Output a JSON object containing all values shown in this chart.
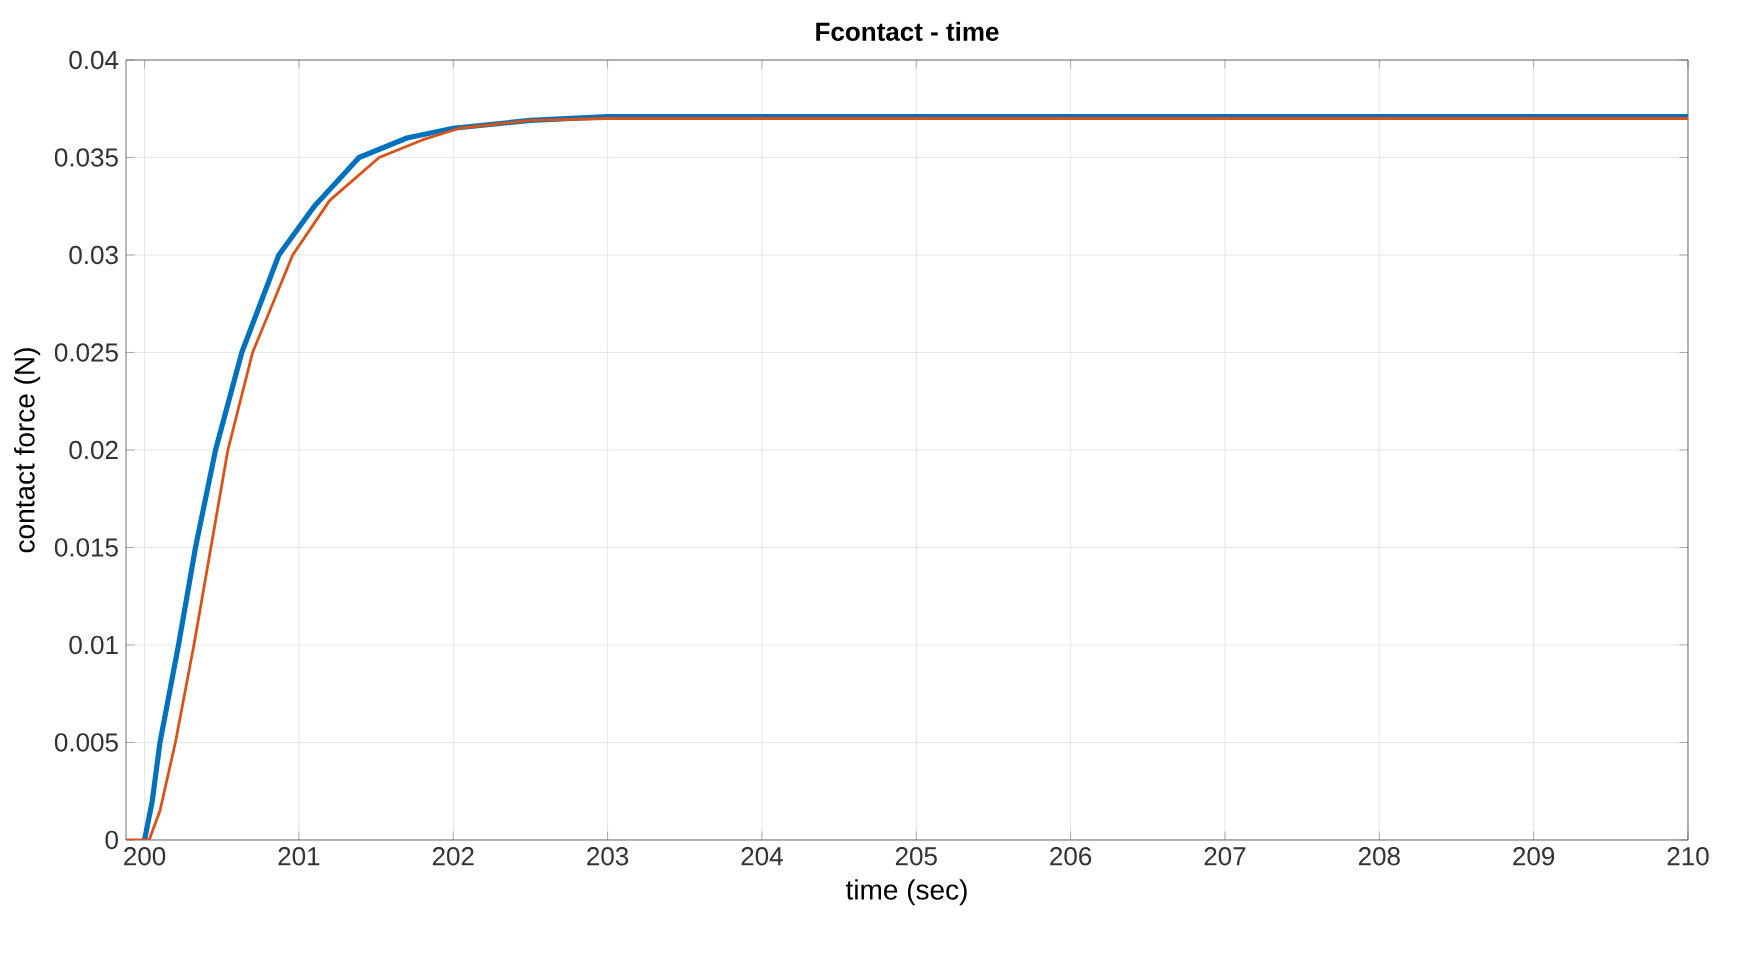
{
  "chart_data": {
    "type": "line",
    "title": "Fcontact - time",
    "xlabel": "time (sec)",
    "ylabel": "contact force (N)",
    "xlim": [
      199.88,
      210
    ],
    "xticks": [
      200,
      201,
      202,
      203,
      204,
      205,
      206,
      207,
      208,
      209,
      210
    ],
    "ylim": [
      0,
      0.04
    ],
    "yticks": [
      0,
      0.005,
      0.01,
      0.015,
      0.02,
      0.025,
      0.03,
      0.035,
      0.04
    ],
    "grid": true,
    "line_style": "solid",
    "marker": "none",
    "series": [
      {
        "color": "#0072bd",
        "x": [
          200.0,
          200.05,
          200.1,
          200.22,
          200.33,
          200.46,
          200.63,
          200.87,
          201.1,
          201.39,
          201.7,
          202.0,
          202.5,
          203,
          205,
          207,
          210
        ],
        "values": [
          0,
          0.002,
          0.005,
          0.01,
          0.015,
          0.02,
          0.025,
          0.03,
          0.0325,
          0.035,
          0.036,
          0.0365,
          0.0369,
          0.0371,
          0.0371,
          0.0371,
          0.0371
        ]
      },
      {
        "color": "#d95319",
        "x": [
          199.88,
          200.03,
          200.1,
          200.2,
          200.32,
          200.43,
          200.54,
          200.7,
          200.96,
          201.2,
          201.52,
          201.8,
          202.04,
          202.5,
          203,
          205,
          207,
          210
        ],
        "values": [
          0,
          0,
          0.0015,
          0.005,
          0.01,
          0.015,
          0.02,
          0.025,
          0.03,
          0.0328,
          0.035,
          0.0359,
          0.0365,
          0.0369,
          0.037,
          0.037,
          0.037,
          0.037
        ]
      }
    ]
  }
}
